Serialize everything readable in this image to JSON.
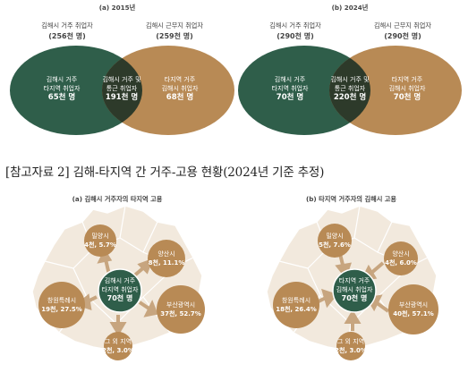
{
  "top": {
    "left": {
      "title": "(a) 2015년",
      "label_left": "김해시 거주 취업자",
      "value_left": "(256천 명)",
      "label_right": "김해시 근무지 취업자",
      "value_right": "(259천 명)",
      "circle_left_lines": [
        "김해시 거주",
        "타지역 취업자",
        "65천 명"
      ],
      "overlap_lines": [
        "김해시 거주 및",
        "통근 취업자",
        "191천 명"
      ],
      "circle_right_lines": [
        "타지역 거주",
        "김해시 취업자",
        "68천 명"
      ]
    },
    "right": {
      "title": "(b) 2024년",
      "label_left": "김해시 거주 취업자",
      "value_left": "(290천 명)",
      "label_right": "김해시 근무지 취업자",
      "value_right": "(290천 명)",
      "circle_left_lines": [
        "김해시 거주",
        "타지역 취업자",
        "70천 명"
      ],
      "overlap_lines": [
        "김해시 거주 및",
        "통근 취업자",
        "220천 명"
      ],
      "circle_right_lines": [
        "타지역 거주",
        "김해시 취업자",
        "70천 명"
      ]
    }
  },
  "caption": "[참고자료 2] 김해-타지역 간 거주-고용 현황(2024년 기준 추정)",
  "bottom": {
    "left": {
      "title": "(a) 김해시 거주자의 타지역 고용",
      "center_lines": [
        "김해시 거주",
        "타지역 취업자",
        "70천 명"
      ],
      "bubbles": [
        {
          "name": "밀양시",
          "value": "4천, 5.7%"
        },
        {
          "name": "양산시",
          "value": "8천, 11.1%"
        },
        {
          "name": "부산광역시",
          "value": "37천, 52.7%"
        },
        {
          "name": "그 외 지역",
          "value": "2천, 3.0%"
        },
        {
          "name": "창원특례시",
          "value": "19천, 27.5%"
        }
      ]
    },
    "right": {
      "title": "(b) 타지역 거주자의 김해시 고용",
      "center_lines": [
        "타지역 거주",
        "김해시 취업자",
        "70천 명"
      ],
      "bubbles": [
        {
          "name": "밀양시",
          "value": "5천, 7.6%"
        },
        {
          "name": "양산시",
          "value": "4천, 6.0%"
        },
        {
          "name": "부산광역시",
          "value": "40천, 57.1%"
        },
        {
          "name": "그 외 지역",
          "value": "2천, 3.0%"
        },
        {
          "name": "창원특례시",
          "value": "18천, 26.4%"
        }
      ]
    }
  },
  "colors": {
    "green": "#2f5e4a",
    "brown": "#b88a55",
    "dark_overlap": "#2d3a2a",
    "map": "#f2e9dd",
    "map_border": "#ffffff",
    "arrow": "#c7a57f"
  }
}
